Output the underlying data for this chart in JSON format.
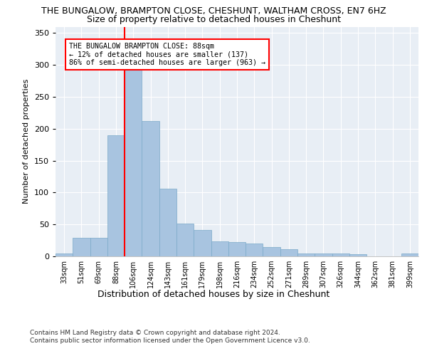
{
  "title": "THE BUNGALOW, BRAMPTON CLOSE, CHESHUNT, WALTHAM CROSS, EN7 6HZ",
  "subtitle": "Size of property relative to detached houses in Cheshunt",
  "xlabel_bottom": "Distribution of detached houses by size in Cheshunt",
  "ylabel": "Number of detached properties",
  "categories": [
    "33sqm",
    "51sqm",
    "69sqm",
    "88sqm",
    "106sqm",
    "124sqm",
    "143sqm",
    "161sqm",
    "179sqm",
    "198sqm",
    "216sqm",
    "234sqm",
    "252sqm",
    "271sqm",
    "289sqm",
    "307sqm",
    "326sqm",
    "344sqm",
    "362sqm",
    "381sqm",
    "399sqm"
  ],
  "values": [
    5,
    29,
    29,
    190,
    295,
    212,
    106,
    51,
    41,
    23,
    22,
    20,
    15,
    11,
    4,
    4,
    4,
    3,
    0,
    0,
    4
  ],
  "bar_color": "#a8c4e0",
  "bar_edge_color": "#7aaac8",
  "red_line_index": 3,
  "annotation_line1": "THE BUNGALOW BRAMPTON CLOSE: 88sqm",
  "annotation_line2": "← 12% of detached houses are smaller (137)",
  "annotation_line3": "86% of semi-detached houses are larger (963) →",
  "footer1": "Contains HM Land Registry data © Crown copyright and database right 2024.",
  "footer2": "Contains public sector information licensed under the Open Government Licence v3.0.",
  "ylim": [
    0,
    360
  ],
  "yticks": [
    0,
    50,
    100,
    150,
    200,
    250,
    300,
    350
  ],
  "bg_color": "#e8eef5",
  "title_fontsize": 9,
  "subtitle_fontsize": 9
}
